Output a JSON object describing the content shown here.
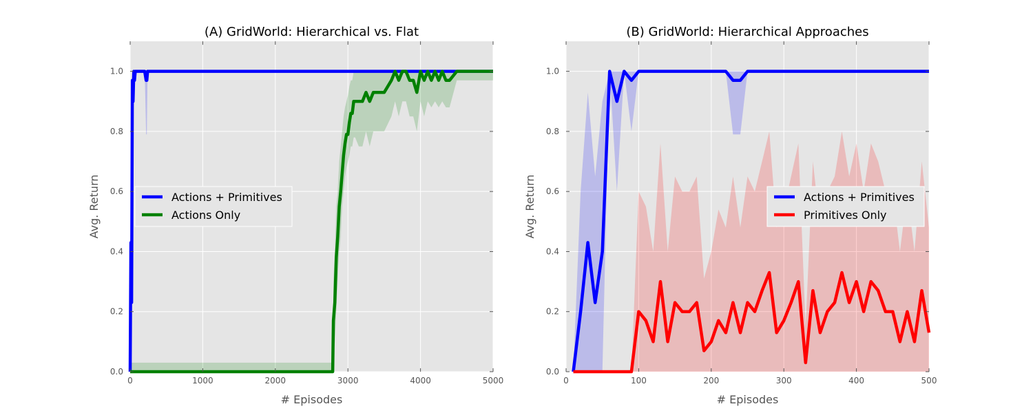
{
  "chart_data": [
    {
      "type": "line",
      "title": "(A) GridWorld: Hierarchical vs. Flat",
      "xlabel": "# Episodes",
      "ylabel": "Avg. Return",
      "xlim": [
        0,
        5000
      ],
      "ylim": [
        0,
        1.1
      ],
      "xticks": [
        "0",
        "1000",
        "2000",
        "3000",
        "4000",
        "5000"
      ],
      "yticks": [
        "0.0",
        "0.2",
        "0.4",
        "0.6",
        "0.8",
        "1.0"
      ],
      "grid": true,
      "legend_position": "center-left",
      "series": [
        {
          "name": "Actions + Primitives",
          "color": "#0000ff",
          "band_color": "#0000ff",
          "x": [
            0,
            10,
            20,
            30,
            40,
            50,
            60,
            70,
            80,
            100,
            150,
            200,
            220,
            230,
            240,
            250,
            300,
            4400,
            4500,
            5000
          ],
          "y": [
            0.0,
            0.43,
            0.23,
            0.97,
            0.9,
            1.0,
            0.97,
            1.0,
            1.0,
            1.0,
            1.0,
            1.0,
            0.97,
            0.97,
            1.0,
            1.0,
            1.0,
            1.0,
            1.0,
            1.0
          ],
          "y_low": [
            0.0,
            0.2,
            0.1,
            0.9,
            0.8,
            1.0,
            0.9,
            1.0,
            1.0,
            1.0,
            1.0,
            1.0,
            0.79,
            0.79,
            1.0,
            1.0,
            1.0,
            1.0,
            1.0,
            1.0
          ],
          "y_high": [
            0.0,
            0.6,
            0.4,
            1.0,
            1.0,
            1.0,
            1.0,
            1.0,
            1.0,
            1.0,
            1.0,
            1.0,
            1.0,
            1.0,
            1.0,
            1.0,
            1.0,
            1.0,
            1.0,
            1.0
          ]
        },
        {
          "name": "Actions Only",
          "color": "#008000",
          "band_color": "#008000",
          "x": [
            0,
            2790,
            2800,
            2820,
            2840,
            2860,
            2880,
            2900,
            2920,
            2940,
            2960,
            2980,
            3000,
            3020,
            3040,
            3060,
            3080,
            3100,
            3150,
            3200,
            3250,
            3300,
            3350,
            3400,
            3500,
            3600,
            3650,
            3700,
            3750,
            3800,
            3850,
            3900,
            3950,
            4000,
            4050,
            4100,
            4150,
            4200,
            4250,
            4300,
            4350,
            4400,
            4500,
            4600,
            5000
          ],
          "y": [
            0.0,
            0.0,
            0.17,
            0.23,
            0.38,
            0.45,
            0.55,
            0.6,
            0.66,
            0.72,
            0.76,
            0.79,
            0.79,
            0.83,
            0.86,
            0.86,
            0.9,
            0.9,
            0.9,
            0.9,
            0.93,
            0.9,
            0.93,
            0.93,
            0.93,
            0.97,
            1.0,
            0.97,
            1.0,
            1.0,
            0.97,
            0.97,
            0.93,
            1.0,
            0.97,
            1.0,
            0.97,
            1.0,
            0.97,
            1.0,
            0.97,
            0.97,
            1.0,
            1.0,
            1.0
          ],
          "y_low": [
            0.0,
            0.0,
            0.05,
            0.1,
            0.2,
            0.3,
            0.4,
            0.45,
            0.55,
            0.6,
            0.65,
            0.68,
            0.7,
            0.72,
            0.75,
            0.75,
            0.78,
            0.78,
            0.75,
            0.75,
            0.8,
            0.75,
            0.8,
            0.8,
            0.8,
            0.85,
            0.9,
            0.85,
            0.9,
            0.9,
            0.85,
            0.85,
            0.8,
            0.9,
            0.85,
            0.9,
            0.88,
            0.9,
            0.88,
            0.9,
            0.88,
            0.88,
            0.97,
            0.97,
            0.97
          ],
          "y_high": [
            0.03,
            0.03,
            0.3,
            0.4,
            0.55,
            0.6,
            0.7,
            0.75,
            0.8,
            0.85,
            0.88,
            0.9,
            0.92,
            0.95,
            0.97,
            0.97,
            1.0,
            1.0,
            1.0,
            1.0,
            1.0,
            1.0,
            1.0,
            1.0,
            1.0,
            1.0,
            1.0,
            1.0,
            1.0,
            1.0,
            1.0,
            1.0,
            1.0,
            1.0,
            1.0,
            1.0,
            1.0,
            1.0,
            1.0,
            1.0,
            1.0,
            1.0,
            1.0,
            1.0,
            1.0
          ]
        }
      ]
    },
    {
      "type": "line",
      "title": "(B) GridWorld: Hierarchical Approaches",
      "xlabel": "# Episodes",
      "ylabel": "Avg. Return",
      "xlim": [
        0,
        500
      ],
      "ylim": [
        0,
        1.1
      ],
      "xticks": [
        "0",
        "100",
        "200",
        "300",
        "400",
        "500"
      ],
      "yticks": [
        "0.0",
        "0.2",
        "0.4",
        "0.6",
        "0.8",
        "1.0"
      ],
      "grid": true,
      "legend_position": "center-right",
      "series": [
        {
          "name": "Actions + Primitives",
          "color": "#0000ff",
          "band_color": "#0000ff",
          "x": [
            10,
            20,
            30,
            40,
            50,
            60,
            70,
            80,
            90,
            100,
            110,
            120,
            130,
            140,
            150,
            160,
            170,
            180,
            190,
            200,
            210,
            220,
            230,
            240,
            250,
            260,
            270,
            280,
            290,
            300,
            310,
            320,
            330,
            340,
            350,
            360,
            370,
            380,
            390,
            400,
            410,
            420,
            430,
            440,
            450,
            460,
            470,
            480,
            490,
            500
          ],
          "y": [
            0.0,
            0.2,
            0.43,
            0.23,
            0.4,
            1.0,
            0.9,
            1.0,
            0.97,
            1.0,
            1.0,
            1.0,
            1.0,
            1.0,
            1.0,
            1.0,
            1.0,
            1.0,
            1.0,
            1.0,
            1.0,
            1.0,
            0.97,
            0.97,
            1.0,
            1.0,
            1.0,
            1.0,
            1.0,
            1.0,
            1.0,
            1.0,
            1.0,
            1.0,
            1.0,
            1.0,
            1.0,
            1.0,
            1.0,
            1.0,
            1.0,
            1.0,
            1.0,
            1.0,
            1.0,
            1.0,
            1.0,
            1.0,
            1.0,
            1.0
          ],
          "y_low": [
            0.0,
            0.0,
            0.0,
            0.0,
            0.0,
            1.0,
            0.6,
            1.0,
            0.8,
            1.0,
            1.0,
            1.0,
            1.0,
            1.0,
            1.0,
            1.0,
            1.0,
            1.0,
            1.0,
            1.0,
            1.0,
            1.0,
            0.79,
            0.79,
            1.0,
            1.0,
            1.0,
            1.0,
            1.0,
            1.0,
            1.0,
            1.0,
            1.0,
            1.0,
            1.0,
            1.0,
            1.0,
            1.0,
            1.0,
            1.0,
            1.0,
            1.0,
            1.0,
            1.0,
            1.0,
            1.0,
            1.0,
            1.0,
            1.0,
            1.0
          ],
          "y_high": [
            0.0,
            0.6,
            0.93,
            0.65,
            0.9,
            1.0,
            1.0,
            1.0,
            1.0,
            1.0,
            1.0,
            1.0,
            1.0,
            1.0,
            1.0,
            1.0,
            1.0,
            1.0,
            1.0,
            1.0,
            1.0,
            1.0,
            1.0,
            1.0,
            1.0,
            1.0,
            1.0,
            1.0,
            1.0,
            1.0,
            1.0,
            1.0,
            1.0,
            1.0,
            1.0,
            1.0,
            1.0,
            1.0,
            1.0,
            1.0,
            1.0,
            1.0,
            1.0,
            1.0,
            1.0,
            1.0,
            1.0,
            1.0,
            1.0,
            1.0
          ]
        },
        {
          "name": "Primitives Only",
          "color": "#ff0000",
          "band_color": "#ff0000",
          "x": [
            10,
            20,
            30,
            40,
            50,
            60,
            70,
            80,
            90,
            100,
            110,
            120,
            130,
            140,
            150,
            160,
            170,
            180,
            190,
            200,
            210,
            220,
            230,
            240,
            250,
            260,
            270,
            280,
            290,
            300,
            310,
            320,
            330,
            340,
            350,
            360,
            370,
            380,
            390,
            400,
            410,
            420,
            430,
            440,
            450,
            460,
            470,
            480,
            490,
            500
          ],
          "y": [
            0.0,
            0.0,
            0.0,
            0.0,
            0.0,
            0.0,
            0.0,
            0.0,
            0.0,
            0.2,
            0.17,
            0.1,
            0.3,
            0.1,
            0.23,
            0.2,
            0.2,
            0.23,
            0.07,
            0.1,
            0.17,
            0.13,
            0.23,
            0.13,
            0.23,
            0.2,
            0.27,
            0.33,
            0.13,
            0.17,
            0.23,
            0.3,
            0.03,
            0.27,
            0.13,
            0.2,
            0.23,
            0.33,
            0.23,
            0.3,
            0.2,
            0.3,
            0.27,
            0.2,
            0.2,
            0.1,
            0.2,
            0.1,
            0.27,
            0.13
          ],
          "y_low": [
            0.0,
            0.0,
            0.0,
            0.0,
            0.0,
            0.0,
            0.0,
            0.0,
            0.0,
            0.0,
            0.0,
            0.0,
            0.0,
            0.0,
            0.0,
            0.0,
            0.0,
            0.0,
            0.0,
            0.0,
            0.0,
            0.0,
            0.0,
            0.0,
            0.0,
            0.0,
            0.0,
            0.0,
            0.0,
            0.0,
            0.0,
            0.0,
            0.0,
            0.0,
            0.0,
            0.0,
            0.0,
            0.0,
            0.0,
            0.0,
            0.0,
            0.0,
            0.0,
            0.0,
            0.0,
            0.0,
            0.0,
            0.0,
            0.0,
            0.0
          ],
          "y_high": [
            0.0,
            0.0,
            0.0,
            0.0,
            0.0,
            0.0,
            0.0,
            0.0,
            0.0,
            0.6,
            0.55,
            0.4,
            0.76,
            0.4,
            0.65,
            0.6,
            0.6,
            0.65,
            0.31,
            0.4,
            0.54,
            0.48,
            0.65,
            0.48,
            0.65,
            0.6,
            0.7,
            0.8,
            0.48,
            0.54,
            0.65,
            0.76,
            0.15,
            0.7,
            0.48,
            0.6,
            0.65,
            0.8,
            0.65,
            0.76,
            0.6,
            0.76,
            0.7,
            0.6,
            0.6,
            0.4,
            0.6,
            0.4,
            0.7,
            0.48
          ]
        }
      ]
    }
  ]
}
